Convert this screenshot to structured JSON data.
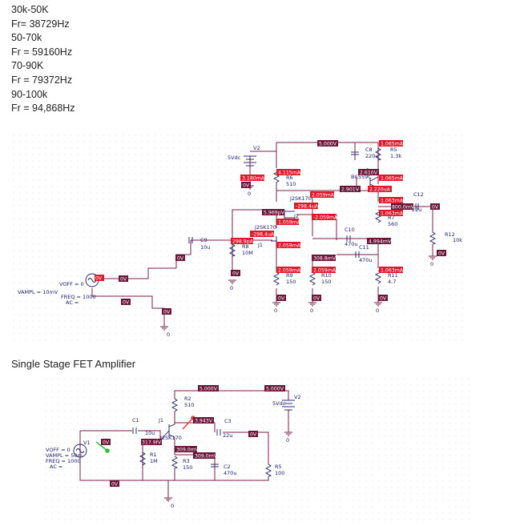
{
  "notes": [
    "30k-50K",
    "Fr= 38729Hz",
    "50-70k",
    "Fr = 59160Hz",
    "70-90K",
    "Fr = 79372Hz",
    "90-100k",
    "Fr = 94,868Hz"
  ],
  "schematic1": {
    "tags": {
      "t_v1": "5.000V",
      "t_i1": "1.065mA",
      "t_i2": "4.115mA",
      "t_i3": "3.180mA",
      "t_v2": "0V",
      "t_i4": "2.610V",
      "t_i5": "1.065mA",
      "t_v3": "2.901V",
      "t_i6": "2.220uA",
      "t_i7": "2.059mA",
      "t_i8": "-298.4uA",
      "t_v4": "5.969pV",
      "t_i9": "1.059mA",
      "t_i10": "-2.059mA",
      "t_i11": "1.063mA",
      "t_v5": "800.0mV",
      "t_v6": "0V",
      "t_i12": "1.063mA",
      "t_i13": "-298.4uA",
      "t_i14": "298.9pA",
      "t_i15": "2.059mA",
      "t_v7": "0V",
      "t_v8": "308.8mV",
      "t_v9": "4.994mV",
      "t_i16": "2.059mA",
      "t_i17": "2.059mA",
      "t_i18": "1.063mA",
      "t_v10": "0V",
      "t_v11": "0V",
      "t_v12": "0V",
      "t_v13": "0V",
      "t_v14": "0V",
      "t_v15": "0V",
      "t_v16": "0V",
      "t_v17": "0V",
      "t_v18": "0V"
    },
    "labels": {
      "v2": "V2",
      "v2val": "5Vdc",
      "c8": "C8",
      "c8val": "220u",
      "r5": "R5",
      "r5val": "1.3k",
      "r6": "R6",
      "r6val": "510",
      "q": "Q",
      "bc": "BC559C",
      "c12": "C12",
      "c12val": "22u",
      "j2sk": "J2SK170",
      "j2": "J2",
      "r7": "R7",
      "r7val": "560",
      "r12": "R12",
      "r12val": "10k",
      "j2sk2": "J2SK170",
      "j1": "J1",
      "c9": "C9",
      "c9val": "10u",
      "r8": "R8",
      "r8val": "10M",
      "c10": "C10",
      "c10val": "470u",
      "c11": "C11",
      "c11val": "470u",
      "r9": "R9",
      "r9val": "150",
      "r10": "R10",
      "r10val": "150",
      "r11": "R11",
      "r11val": "4.7",
      "voff": "VOFF = 0",
      "vampl": "VAMPL = 10mV",
      "freq": "FREQ = 1000",
      "ac": "AC =",
      "gnd": "0"
    }
  },
  "heading": "Single Stage FET Amplifier",
  "schematic2": {
    "tags": {
      "t_v1": "5.000V",
      "t_v2": "5.000V",
      "t_v3": "3.943V",
      "t_v4": "0V",
      "t_v5": "0V",
      "t_v6": "317.9fV",
      "t_v7": "309.0mV",
      "t_v8": "309.0mV",
      "t_v9": "0V"
    },
    "labels": {
      "r2": "R2",
      "r2val": "510",
      "v2": "V2",
      "v2val": "5Vdc",
      "c1": "C1",
      "c1val": "10u",
      "j1": "J1",
      "c3": "C3",
      "c3val": "22u",
      "jsk": "J2SK170",
      "v1": "V1",
      "voff": "VOFF = 0",
      "vampl": "VAMPL = 50m",
      "freq": "FREQ = 1000",
      "ac": "AC =",
      "r1": "R1",
      "r1val": "1M",
      "r3": "R3",
      "r3val": "150",
      "c2": "C2",
      "c2val": "470u",
      "r5": "R5",
      "r5val": "100",
      "gnd": "0"
    }
  }
}
